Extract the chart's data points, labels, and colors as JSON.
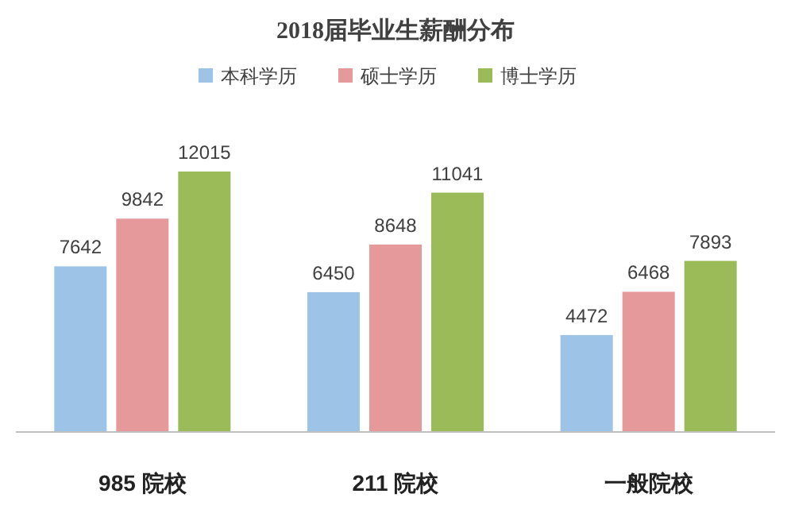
{
  "chart_data": {
    "type": "bar",
    "title": "2018届毕业生薪酬分布",
    "categories": [
      "985 院校",
      "211 院校",
      "一般院校"
    ],
    "series": [
      {
        "name": "本科学历",
        "color": "#9dc3e6",
        "values": [
          7642,
          6450,
          4472
        ]
      },
      {
        "name": "硕士学历",
        "color": "#e6999b",
        "values": [
          9842,
          8648,
          6468
        ]
      },
      {
        "name": "博士学历",
        "color": "#9bbb59",
        "values": [
          12015,
          11041,
          7893
        ]
      }
    ],
    "data_labels": true,
    "legend": "top",
    "grid": false
  }
}
